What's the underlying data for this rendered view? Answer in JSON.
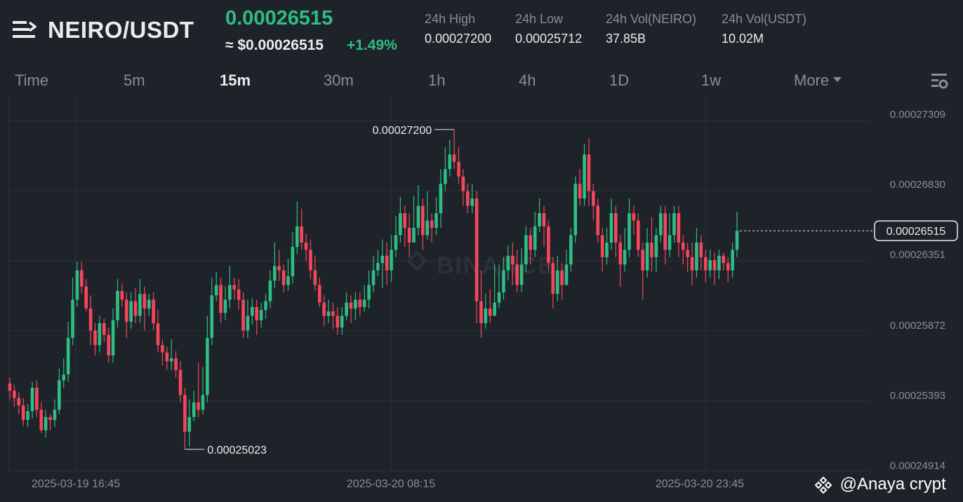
{
  "header": {
    "pair": "NEIRO/USDT",
    "price": "0.00026515",
    "usd_price": "≈ $0.00026515",
    "change": "+1.49%",
    "stats": [
      {
        "label": "24h High",
        "value": "0.00027200"
      },
      {
        "label": "24h Low",
        "value": "0.00025712"
      },
      {
        "label": "24h Vol(NEIRO)",
        "value": "37.85B"
      },
      {
        "label": "24h Vol(USDT)",
        "value": "10.02M"
      }
    ]
  },
  "tabs": [
    "Time",
    "5m",
    "15m",
    "30m",
    "1h",
    "4h",
    "1D",
    "1w",
    "More"
  ],
  "active_tab": "15m",
  "colors": {
    "up": "#2ebd85",
    "down": "#f6465d",
    "background": "#1e2329",
    "grid": "#2b3139",
    "text_muted": "#848e9c"
  },
  "icons": {
    "menu": "menu-icon",
    "settings": "chart-settings-icon",
    "dropdown": "caret-down-icon",
    "logo": "binance-logo-icon"
  },
  "chart_data": {
    "type": "candlestick",
    "interval": "15m",
    "y_ticks": [
      "0.00027309",
      "0.00026830",
      "0.00026351",
      "0.00025872",
      "0.00025393",
      "0.00024914"
    ],
    "x_ticks": [
      "2025-03-19 16:45",
      "2025-03-20 08:15",
      "2025-03-20 23:45"
    ],
    "high_label": "0.00027200",
    "low_label": "0.00025023",
    "last_price_label": "0.00026515",
    "watermark": "BINANCE",
    "ylim": [
      0.00024914,
      0.00027309
    ],
    "candles": [
      [
        0.0002547,
        0.0002542,
        0.0002551,
        0.0002536
      ],
      [
        0.0002542,
        0.0002537,
        0.0002546,
        0.0002531
      ],
      [
        0.0002537,
        0.0002532,
        0.0002541,
        0.0002526
      ],
      [
        0.0002532,
        0.0002522,
        0.0002537,
        0.0002518
      ],
      [
        0.0002522,
        0.0002528,
        0.0002533,
        0.0002517
      ],
      [
        0.0002528,
        0.0002544,
        0.0002548,
        0.0002523
      ],
      [
        0.0002544,
        0.0002529,
        0.0002549,
        0.0002524
      ],
      [
        0.0002529,
        0.0002515,
        0.0002534,
        0.0002513
      ],
      [
        0.0002515,
        0.0002524,
        0.0002529,
        0.000251
      ],
      [
        0.0002524,
        0.0002522,
        0.0002526,
        0.0002515
      ],
      [
        0.0002522,
        0.0002529,
        0.0002536,
        0.0002517
      ],
      [
        0.0002529,
        0.0002549,
        0.0002557,
        0.0002526
      ],
      [
        0.0002549,
        0.0002553,
        0.0002564,
        0.0002544
      ],
      [
        0.0002553,
        0.0002578,
        0.0002589,
        0.0002548
      ],
      [
        0.0002578,
        0.0002604,
        0.0002619,
        0.0002573
      ],
      [
        0.0002604,
        0.0002624,
        0.000263,
        0.0002599
      ],
      [
        0.0002624,
        0.0002613,
        0.000263,
        0.0002608
      ],
      [
        0.0002613,
        0.0002598,
        0.0002618,
        0.0002596
      ],
      [
        0.0002598,
        0.0002583,
        0.0002607,
        0.0002573
      ],
      [
        0.0002583,
        0.0002573,
        0.0002588,
        0.0002566
      ],
      [
        0.0002573,
        0.0002588,
        0.0002593,
        0.0002568
      ],
      [
        0.0002588,
        0.000258,
        0.0002591,
        0.0002575
      ],
      [
        0.000258,
        0.0002566,
        0.0002585,
        0.0002561
      ],
      [
        0.0002566,
        0.000259,
        0.0002598,
        0.0002561
      ],
      [
        0.000259,
        0.000261,
        0.0002618,
        0.0002585
      ],
      [
        0.000261,
        0.0002604,
        0.0002615,
        0.0002599
      ],
      [
        0.0002604,
        0.0002589,
        0.0002609,
        0.0002578
      ],
      [
        0.0002589,
        0.0002603,
        0.0002609,
        0.0002584
      ],
      [
        0.0002603,
        0.0002593,
        0.0002612,
        0.0002588
      ],
      [
        0.0002593,
        0.0002608,
        0.0002618,
        0.0002588
      ],
      [
        0.0002608,
        0.0002598,
        0.0002613,
        0.0002583
      ],
      [
        0.0002598,
        0.0002604,
        0.0002608,
        0.0002593
      ],
      [
        0.0002604,
        0.0002588,
        0.0002609,
        0.0002583
      ],
      [
        0.0002588,
        0.0002573,
        0.0002597,
        0.0002568
      ],
      [
        0.0002573,
        0.0002568,
        0.0002577,
        0.0002559
      ],
      [
        0.0002568,
        0.0002562,
        0.0002572,
        0.0002556
      ],
      [
        0.0002562,
        0.0002564,
        0.0002577,
        0.0002556
      ],
      [
        0.0002564,
        0.0002556,
        0.0002569,
        0.0002551
      ],
      [
        0.0002556,
        0.0002539,
        0.0002562,
        0.0002534
      ],
      [
        0.0002539,
        0.0002514,
        0.0002544,
        0.0002502
      ],
      [
        0.0002514,
        0.0002524,
        0.0002536,
        0.0002504
      ],
      [
        0.0002524,
        0.0002534,
        0.0002542,
        0.0002521
      ],
      [
        0.0002534,
        0.0002529,
        0.0002561,
        0.0002524
      ],
      [
        0.0002529,
        0.0002539,
        0.0002558,
        0.0002526
      ],
      [
        0.0002539,
        0.0002578,
        0.0002593,
        0.0002534
      ],
      [
        0.0002578,
        0.0002607,
        0.0002619,
        0.0002573
      ],
      [
        0.0002607,
        0.0002614,
        0.0002623,
        0.0002603
      ],
      [
        0.0002614,
        0.0002595,
        0.0002619,
        0.0002588
      ],
      [
        0.0002595,
        0.0002604,
        0.0002613,
        0.000259
      ],
      [
        0.0002604,
        0.0002614,
        0.0002627,
        0.0002598
      ],
      [
        0.0002614,
        0.0002611,
        0.0002619,
        0.0002604
      ],
      [
        0.0002611,
        0.0002604,
        0.0002618,
        0.0002597
      ],
      [
        0.0002604,
        0.0002583,
        0.0002609,
        0.0002578
      ],
      [
        0.0002583,
        0.0002593,
        0.0002604,
        0.0002578
      ],
      [
        0.0002593,
        0.0002599,
        0.0002605,
        0.0002587
      ],
      [
        0.0002599,
        0.000259,
        0.0002604,
        0.000258
      ],
      [
        0.000259,
        0.0002597,
        0.0002602,
        0.0002585
      ],
      [
        0.0002597,
        0.0002603,
        0.0002608,
        0.0002591
      ],
      [
        0.0002603,
        0.0002617,
        0.0002624,
        0.0002598
      ],
      [
        0.0002617,
        0.0002627,
        0.0002643,
        0.0002612
      ],
      [
        0.0002627,
        0.0002624,
        0.0002638,
        0.0002617
      ],
      [
        0.0002624,
        0.0002614,
        0.0002628,
        0.0002609
      ],
      [
        0.0002614,
        0.000262,
        0.0002632,
        0.000261
      ],
      [
        0.000262,
        0.000264,
        0.000265,
        0.0002615
      ],
      [
        0.000264,
        0.0002654,
        0.0002671,
        0.0002635
      ],
      [
        0.0002654,
        0.0002643,
        0.0002666,
        0.0002638
      ],
      [
        0.0002643,
        0.0002638,
        0.0002649,
        0.000263
      ],
      [
        0.0002638,
        0.0002624,
        0.0002645,
        0.0002618
      ],
      [
        0.0002624,
        0.0002614,
        0.0002634,
        0.000261
      ],
      [
        0.0002614,
        0.0002602,
        0.0002619,
        0.0002599
      ],
      [
        0.0002602,
        0.0002593,
        0.0002607,
        0.0002586
      ],
      [
        0.0002593,
        0.0002596,
        0.0002604,
        0.0002588
      ],
      [
        0.0002596,
        0.0002593,
        0.0002602,
        0.0002584
      ],
      [
        0.0002593,
        0.0002585,
        0.0002599,
        0.000258
      ],
      [
        0.0002585,
        0.0002593,
        0.0002599,
        0.000258
      ],
      [
        0.0002593,
        0.0002602,
        0.0002609,
        0.000259
      ],
      [
        0.0002602,
        0.0002598,
        0.0002607,
        0.0002588
      ],
      [
        0.0002598,
        0.0002604,
        0.0002609,
        0.000259
      ],
      [
        0.0002604,
        0.0002599,
        0.0002609,
        0.0002593
      ],
      [
        0.0002599,
        0.0002604,
        0.0002614,
        0.0002596
      ],
      [
        0.0002604,
        0.0002614,
        0.0002624,
        0.0002598
      ],
      [
        0.0002614,
        0.0002624,
        0.0002634,
        0.0002609
      ],
      [
        0.0002624,
        0.0002629,
        0.0002638,
        0.000262
      ],
      [
        0.0002629,
        0.0002634,
        0.0002645,
        0.0002612
      ],
      [
        0.0002634,
        0.0002624,
        0.0002643,
        0.0002614
      ],
      [
        0.0002624,
        0.0002638,
        0.0002648,
        0.0002616
      ],
      [
        0.0002638,
        0.0002648,
        0.0002661,
        0.0002633
      ],
      [
        0.0002648,
        0.0002663,
        0.0002674,
        0.0002643
      ],
      [
        0.0002663,
        0.0002653,
        0.0002668,
        0.000264
      ],
      [
        0.0002653,
        0.0002643,
        0.0002663,
        0.0002633
      ],
      [
        0.0002643,
        0.0002653,
        0.0002675,
        0.0002643
      ],
      [
        0.0002653,
        0.0002668,
        0.0002682,
        0.0002648
      ],
      [
        0.0002668,
        0.0002648,
        0.0002673,
        0.0002638
      ],
      [
        0.0002648,
        0.0002658,
        0.0002678,
        0.0002645
      ],
      [
        0.0002658,
        0.0002653,
        0.0002663,
        0.0002643
      ],
      [
        0.0002653,
        0.0002663,
        0.0002674,
        0.0002648
      ],
      [
        0.0002663,
        0.0002683,
        0.0002693,
        0.0002653
      ],
      [
        0.0002683,
        0.0002693,
        0.0002708,
        0.0002678
      ],
      [
        0.0002693,
        0.0002703,
        0.0002713,
        0.0002688
      ],
      [
        0.0002703,
        0.0002698,
        0.000272,
        0.0002693
      ],
      [
        0.0002698,
        0.0002688,
        0.0002708,
        0.0002683
      ],
      [
        0.0002688,
        0.0002678,
        0.0002693,
        0.0002668
      ],
      [
        0.0002678,
        0.0002668,
        0.0002683,
        0.0002663
      ],
      [
        0.0002668,
        0.0002673,
        0.0002683,
        0.0002663
      ],
      [
        0.0002673,
        0.0002603,
        0.0002678,
        0.0002588
      ],
      [
        0.0002603,
        0.0002588,
        0.0002624,
        0.0002578
      ],
      [
        0.0002588,
        0.0002598,
        0.0002608,
        0.0002584
      ],
      [
        0.0002598,
        0.0002593,
        0.0002611,
        0.0002588
      ],
      [
        0.0002593,
        0.0002602,
        0.0002628,
        0.0002593
      ],
      [
        0.0002602,
        0.0002609,
        0.0002628,
        0.0002598
      ],
      [
        0.0002609,
        0.0002624,
        0.0002633,
        0.0002604
      ],
      [
        0.0002624,
        0.0002634,
        0.0002641,
        0.0002617
      ],
      [
        0.0002634,
        0.0002628,
        0.0002643,
        0.0002614
      ],
      [
        0.0002628,
        0.0002614,
        0.0002638,
        0.0002609
      ],
      [
        0.0002614,
        0.0002628,
        0.0002639,
        0.0002609
      ],
      [
        0.0002628,
        0.0002648,
        0.0002654,
        0.0002623
      ],
      [
        0.0002648,
        0.0002638,
        0.0002653,
        0.0002628
      ],
      [
        0.0002638,
        0.0002654,
        0.0002664,
        0.0002633
      ],
      [
        0.0002654,
        0.0002663,
        0.0002673,
        0.000265
      ],
      [
        0.0002663,
        0.0002654,
        0.0002668,
        0.000264
      ],
      [
        0.0002654,
        0.0002629,
        0.0002658,
        0.0002624
      ],
      [
        0.0002629,
        0.0002608,
        0.0002633,
        0.0002598
      ],
      [
        0.0002608,
        0.0002624,
        0.0002634,
        0.0002603
      ],
      [
        0.0002624,
        0.0002614,
        0.0002629,
        0.0002604
      ],
      [
        0.0002614,
        0.0002628,
        0.0002638,
        0.0002614
      ],
      [
        0.0002628,
        0.0002648,
        0.0002653,
        0.0002623
      ],
      [
        0.0002648,
        0.0002683,
        0.0002688,
        0.0002643
      ],
      [
        0.0002683,
        0.0002673,
        0.0002693,
        0.0002668
      ],
      [
        0.0002673,
        0.0002703,
        0.000271,
        0.0002668
      ],
      [
        0.0002703,
        0.0002678,
        0.0002714,
        0.0002668
      ],
      [
        0.0002678,
        0.0002668,
        0.0002683,
        0.0002658
      ],
      [
        0.0002668,
        0.0002648,
        0.0002673,
        0.0002643
      ],
      [
        0.0002648,
        0.0002633,
        0.0002653,
        0.0002623
      ],
      [
        0.0002633,
        0.0002643,
        0.0002653,
        0.0002628
      ],
      [
        0.0002643,
        0.0002663,
        0.0002673,
        0.0002638
      ],
      [
        0.0002663,
        0.0002643,
        0.0002668,
        0.0002633
      ],
      [
        0.0002643,
        0.0002628,
        0.0002648,
        0.0002613
      ],
      [
        0.0002628,
        0.0002638,
        0.0002653,
        0.0002623
      ],
      [
        0.0002638,
        0.0002663,
        0.0002673,
        0.0002633
      ],
      [
        0.0002663,
        0.0002658,
        0.0002668,
        0.0002648
      ],
      [
        0.0002658,
        0.0002638,
        0.0002663,
        0.0002633
      ],
      [
        0.0002638,
        0.0002624,
        0.0002643,
        0.0002604
      ],
      [
        0.0002624,
        0.0002643,
        0.0002653,
        0.0002619
      ],
      [
        0.0002643,
        0.0002633,
        0.000266,
        0.0002623
      ],
      [
        0.0002633,
        0.0002648,
        0.0002653,
        0.0002623
      ],
      [
        0.0002648,
        0.0002663,
        0.0002668,
        0.0002643
      ],
      [
        0.0002663,
        0.0002638,
        0.0002668,
        0.0002628
      ],
      [
        0.0002638,
        0.0002648,
        0.0002663,
        0.0002633
      ],
      [
        0.0002648,
        0.0002663,
        0.0002668,
        0.0002643
      ],
      [
        0.0002663,
        0.0002643,
        0.0002668,
        0.0002633
      ],
      [
        0.0002643,
        0.0002638,
        0.0002648,
        0.0002628
      ],
      [
        0.0002638,
        0.0002633,
        0.0002643,
        0.0002623
      ],
      [
        0.0002633,
        0.0002624,
        0.0002643,
        0.0002614
      ],
      [
        0.0002624,
        0.0002643,
        0.0002653,
        0.0002619
      ],
      [
        0.0002643,
        0.0002633,
        0.0002648,
        0.0002624
      ],
      [
        0.0002633,
        0.0002624,
        0.0002638,
        0.0002616
      ],
      [
        0.0002624,
        0.0002631,
        0.0002638,
        0.0002619
      ],
      [
        0.0002631,
        0.0002624,
        0.0002636,
        0.0002614
      ],
      [
        0.0002624,
        0.0002634,
        0.0002638,
        0.0002618
      ],
      [
        0.0002634,
        0.0002629,
        0.0002636,
        0.0002624
      ],
      [
        0.0002629,
        0.0002624,
        0.0002633,
        0.0002616
      ],
      [
        0.0002624,
        0.0002638,
        0.0002643,
        0.0002619
      ],
      [
        0.0002638,
        0.0002651,
        0.0002664,
        0.0002633
      ]
    ]
  }
}
